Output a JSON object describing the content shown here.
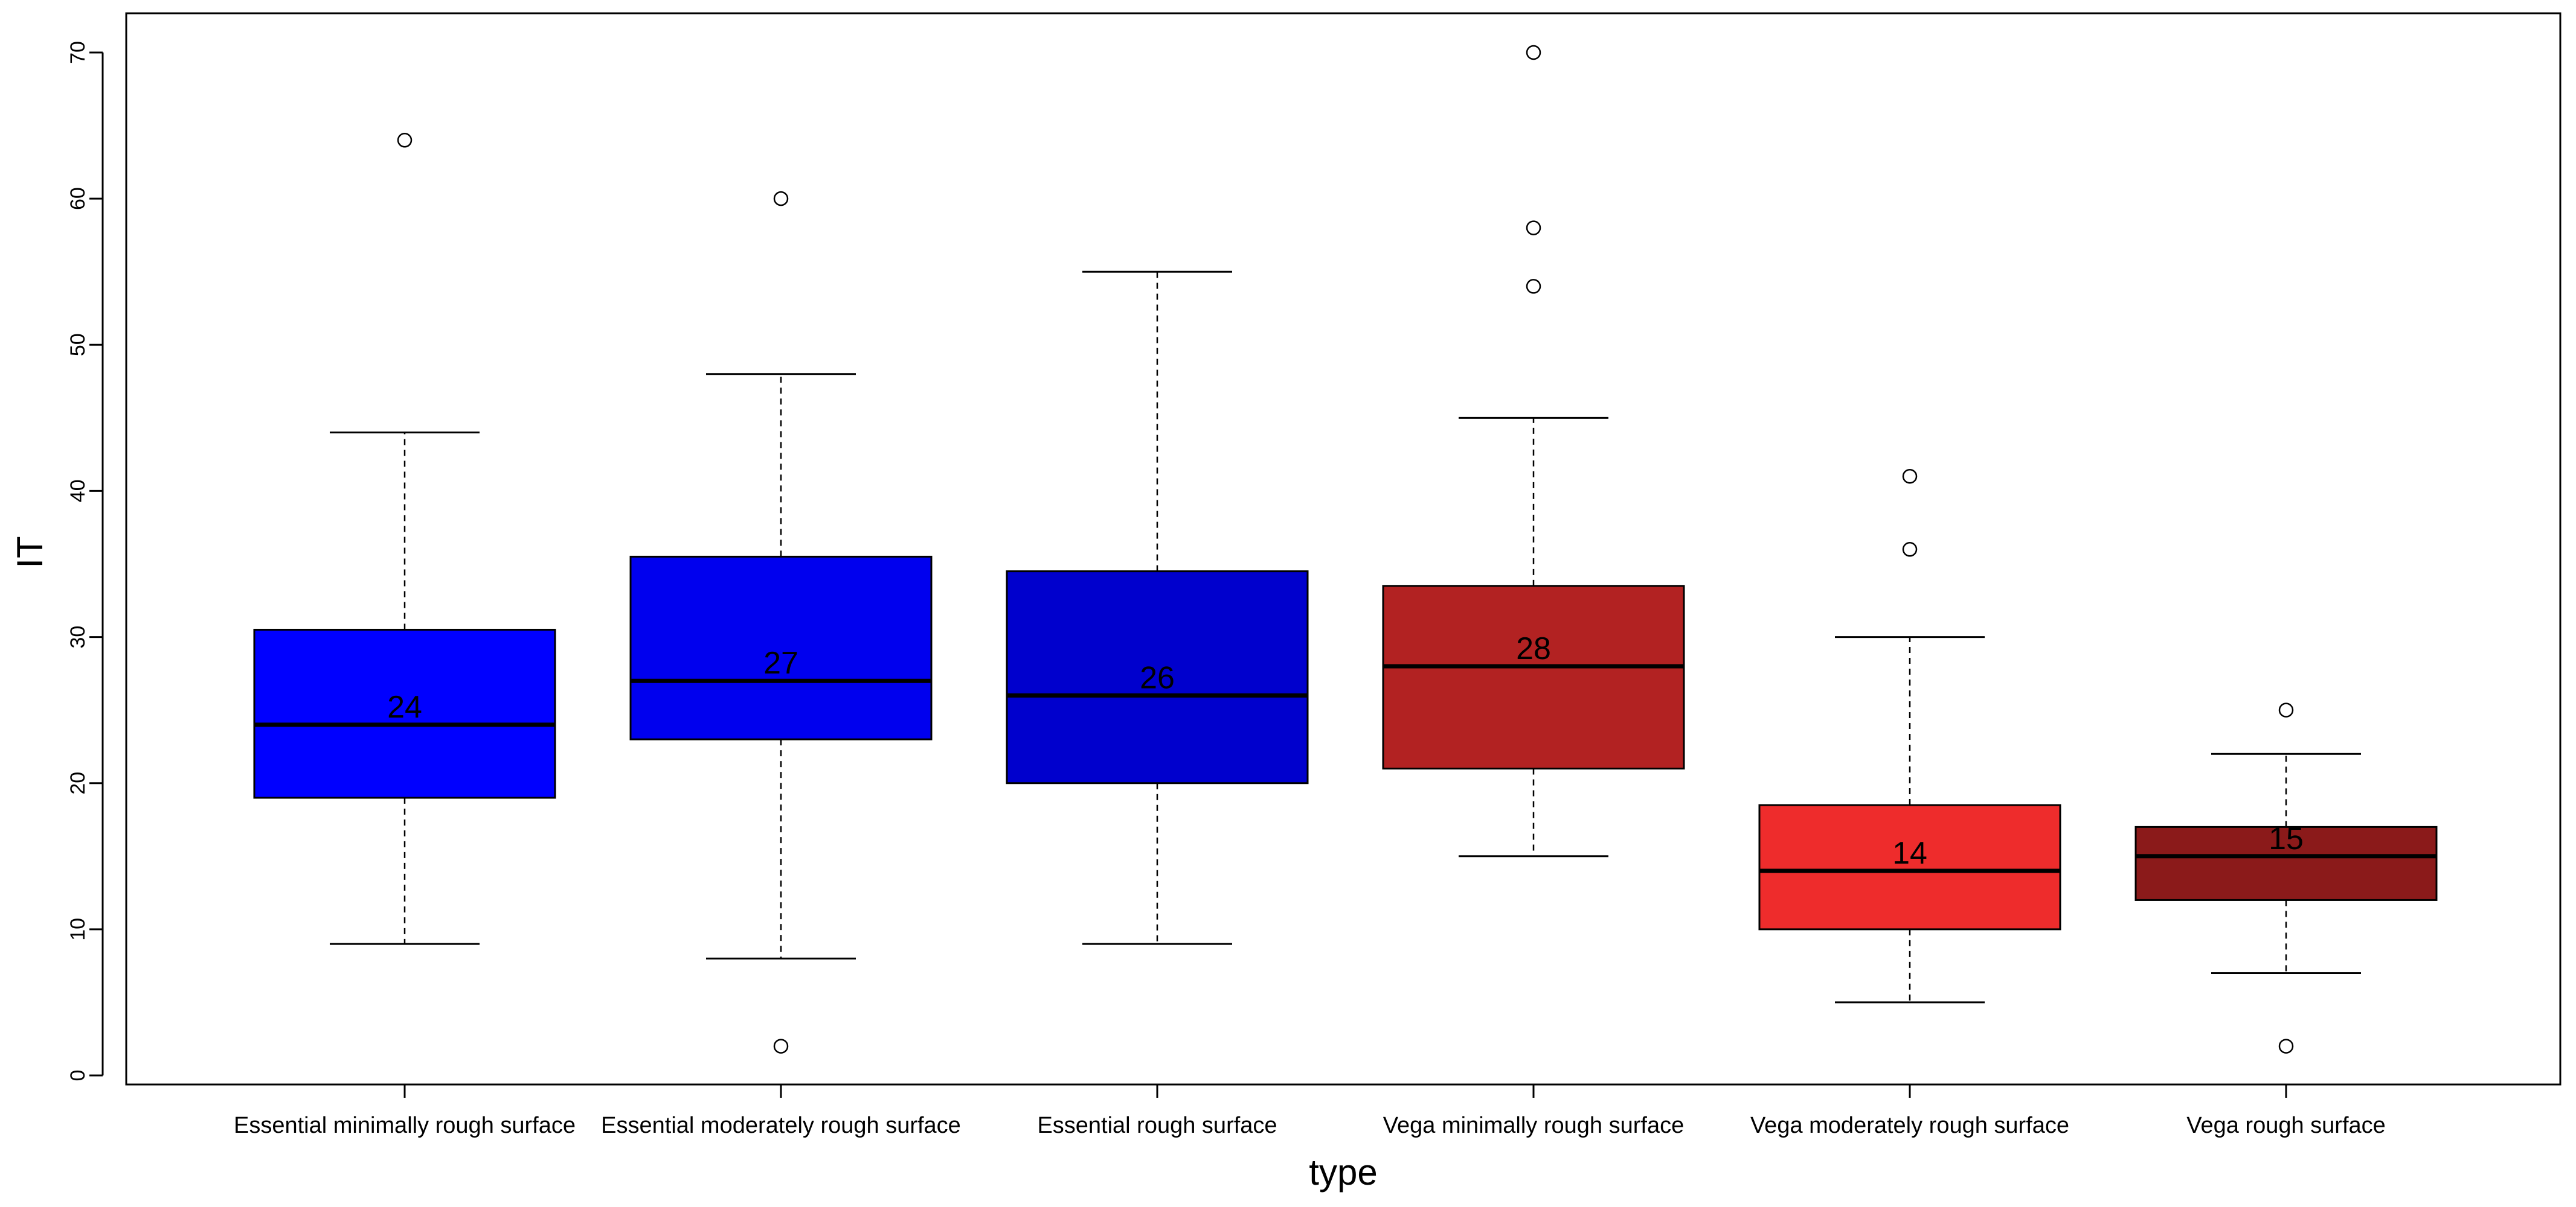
{
  "chart_data": {
    "type": "boxplot",
    "title": "",
    "xlabel": "type",
    "ylabel": "IT",
    "ylim": [
      -1,
      73
    ],
    "yticks": [
      0,
      10,
      20,
      30,
      40,
      50,
      60,
      70
    ],
    "series": [
      {
        "name": "Essential minimally rough surface",
        "color": "#0000FF",
        "whisker_low": 9,
        "q1": 19,
        "median": 24,
        "q3": 30.5,
        "whisker_high": 44,
        "outliers": [
          64
        ],
        "median_label": "24"
      },
      {
        "name": "Essential moderately rough surface",
        "color": "#0000EE",
        "whisker_low": 8,
        "q1": 23,
        "median": 27,
        "q3": 35.5,
        "whisker_high": 48,
        "outliers": [
          2,
          60
        ],
        "median_label": "27"
      },
      {
        "name": "Essential rough surface",
        "color": "#0000CD",
        "whisker_low": 9,
        "q1": 20,
        "median": 26,
        "q3": 34.5,
        "whisker_high": 55,
        "outliers": [],
        "median_label": "26"
      },
      {
        "name": "Vega minimally rough surface",
        "color": "#B22222",
        "whisker_low": 15,
        "q1": 21,
        "median": 28,
        "q3": 33.5,
        "whisker_high": 45,
        "outliers": [
          54,
          58,
          70
        ],
        "median_label": "28"
      },
      {
        "name": "Vega moderately rough surface",
        "color": "#EE2C2C",
        "whisker_low": 5,
        "q1": 10,
        "median": 14,
        "q3": 18.5,
        "whisker_high": 30,
        "outliers": [
          36,
          41
        ],
        "median_label": "14"
      },
      {
        "name": "Vega rough surface",
        "color": "#8B1A1A",
        "whisker_low": 7,
        "q1": 12,
        "median": 15,
        "q3": 17,
        "whisker_high": 22,
        "outliers": [
          2,
          25
        ],
        "median_label": "15"
      }
    ]
  }
}
